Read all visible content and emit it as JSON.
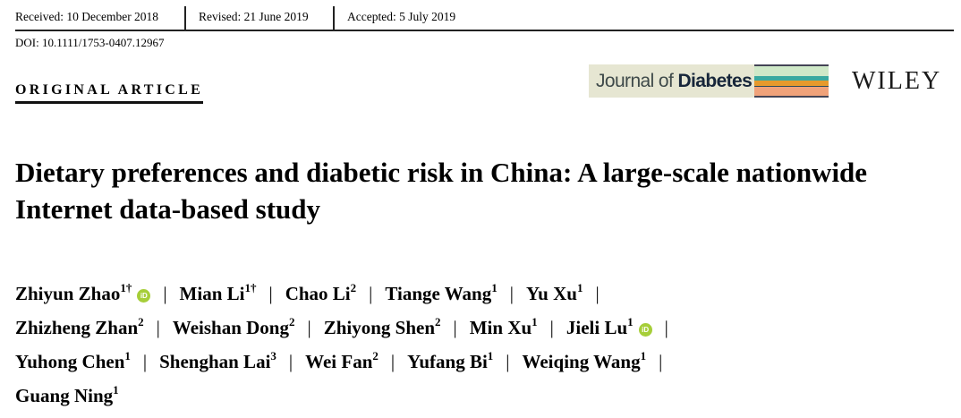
{
  "dates": {
    "received": "Received: 10 December 2018",
    "revised": "Revised: 21 June 2019",
    "accepted": "Accepted: 5 July 2019"
  },
  "doi": "DOI: 10.1111/1753-0407.12967",
  "article_type": "ORIGINAL ARTICLE",
  "journal": {
    "prefix": "Journal of ",
    "name": "Diabetes",
    "publisher": "WILEY"
  },
  "title": "Dietary preferences and diabetic risk in China: A large-scale nationwide Internet data-based study",
  "separator": "|",
  "orcid_label": "iD",
  "author_lines": [
    [
      {
        "name": "Zhiyun Zhao",
        "aff": "1†",
        "orcid": true
      },
      {
        "name": "Mian Li",
        "aff": "1†"
      },
      {
        "name": "Chao Li",
        "aff": "2"
      },
      {
        "name": "Tiange Wang",
        "aff": "1"
      },
      {
        "name": "Yu Xu",
        "aff": "1"
      }
    ],
    [
      {
        "name": "Zhizheng Zhan",
        "aff": "2"
      },
      {
        "name": "Weishan Dong",
        "aff": "2"
      },
      {
        "name": "Zhiyong Shen",
        "aff": "2"
      },
      {
        "name": "Min Xu",
        "aff": "1"
      },
      {
        "name": "Jieli Lu",
        "aff": "1",
        "orcid": true
      }
    ],
    [
      {
        "name": "Yuhong Chen",
        "aff": "1"
      },
      {
        "name": "Shenghan Lai",
        "aff": "3"
      },
      {
        "name": "Wei Fan",
        "aff": "2"
      },
      {
        "name": "Yufang Bi",
        "aff": "1"
      },
      {
        "name": "Weiqing Wang",
        "aff": "1"
      }
    ],
    [
      {
        "name": "Guang Ning",
        "aff": "1"
      }
    ]
  ]
}
